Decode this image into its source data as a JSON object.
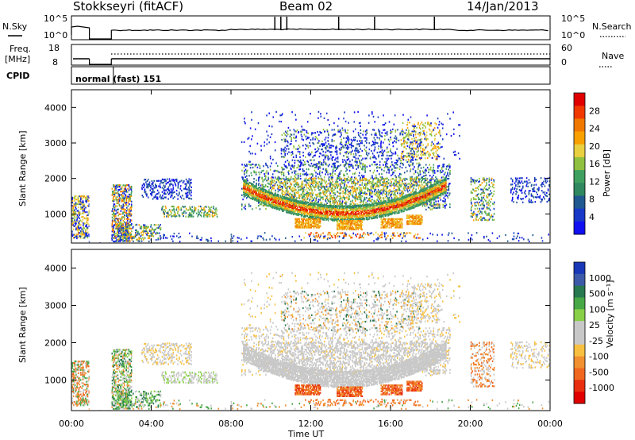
{
  "header": {
    "station": "Stokkseyri (fitACF)",
    "beam": "Beam 02",
    "date": "14/Jan/2013"
  },
  "noise_panel": {
    "left_label": "N.Sky",
    "right_label": "N.Search",
    "left_ticks": [
      "10^5",
      "10^0"
    ],
    "right_ticks": [
      "10^5",
      "10^0"
    ]
  },
  "freq_panel": {
    "left_label_1": "Freq.",
    "left_label_2": "[MHz]",
    "right_label": "Nave",
    "left_ticks": [
      "18",
      "8"
    ],
    "right_ticks": [
      "60",
      "0"
    ]
  },
  "cpid_panel": {
    "label": "CPID",
    "value": "normal (fast) 151"
  },
  "chart_data": [
    {
      "type": "heatmap",
      "quantity": "Power",
      "ylabel": "Slant Range [km]",
      "xlabel": "",
      "colorbar_label": "Power [dB]",
      "colorbar_ticks": [
        "28",
        "24",
        "20",
        "16",
        "12",
        "8",
        "4"
      ],
      "colorbar_colors": [
        "#e00000",
        "#f03800",
        "#f07800",
        "#f8a000",
        "#e8d040",
        "#90c040",
        "#40a060",
        "#308860",
        "#205890",
        "#1838c8",
        "#1010f0"
      ],
      "y_ticks": [
        "4000",
        "3000",
        "2000",
        "1000"
      ],
      "y_tick_values": [
        4000,
        3000,
        2000,
        1000
      ],
      "ylim": [
        180,
        4500
      ],
      "xlim": [
        0,
        24
      ]
    },
    {
      "type": "heatmap",
      "quantity": "Velocity",
      "ylabel": "Slant Range [km]",
      "xlabel": "Time UT",
      "colorbar_label": "Velocity [m s⁻¹]",
      "colorbar_ticks": [
        "1000",
        "500",
        "100",
        "25",
        "-25",
        "-100",
        "-500",
        "-1000"
      ],
      "colorbar_colors": [
        "#1838b8",
        "#3c5aa8",
        "#287850",
        "#48a848",
        "#88d048",
        "#c8c8c8",
        "#c8c8c8",
        "#f8c040",
        "#f09030",
        "#f06820",
        "#e83010",
        "#e00000"
      ],
      "y_ticks": [
        "4000",
        "3000",
        "2000",
        "1000"
      ],
      "y_tick_values": [
        4000,
        3000,
        2000,
        1000
      ],
      "x_ticks": [
        "00:00",
        "04:00",
        "08:00",
        "12:00",
        "16:00",
        "20:00",
        "00:00"
      ],
      "x_tick_values": [
        0,
        4,
        8,
        12,
        16,
        20,
        24
      ],
      "ylim": [
        180,
        4500
      ],
      "xlim": [
        0,
        24
      ]
    }
  ]
}
